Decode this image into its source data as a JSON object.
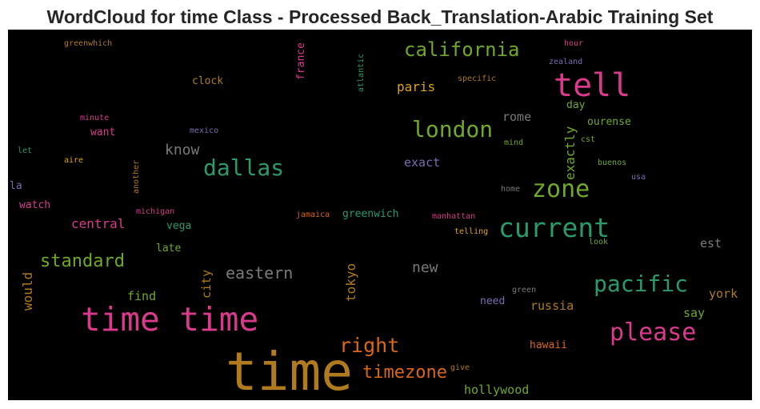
{
  "chart_data": {
    "type": "wordcloud",
    "title": "WordCloud for time Class - Processed Back_Translation-Arabic Training Set",
    "background": "#000000",
    "words": [
      {
        "text": "time",
        "weight": 1.0,
        "color": "#b07a1e",
        "orientation": "horizontal"
      },
      {
        "text": "time time",
        "weight": 0.62,
        "color": "#d93a8c",
        "orientation": "horizontal"
      },
      {
        "text": "tell",
        "weight": 0.6,
        "color": "#d93a8c",
        "orientation": "horizontal"
      },
      {
        "text": "current",
        "weight": 0.5,
        "color": "#2a9a6a",
        "orientation": "horizontal"
      },
      {
        "text": "zone",
        "weight": 0.46,
        "color": "#6fa82a",
        "orientation": "horizontal"
      },
      {
        "text": "please",
        "weight": 0.46,
        "color": "#d93a8c",
        "orientation": "horizontal"
      },
      {
        "text": "london",
        "weight": 0.42,
        "color": "#6fa82a",
        "orientation": "horizontal"
      },
      {
        "text": "pacific",
        "weight": 0.42,
        "color": "#2a9a6a",
        "orientation": "horizontal"
      },
      {
        "text": "dallas",
        "weight": 0.42,
        "color": "#2a9a6a",
        "orientation": "horizontal"
      },
      {
        "text": "right",
        "weight": 0.38,
        "color": "#d9661a",
        "orientation": "horizontal"
      },
      {
        "text": "california",
        "weight": 0.36,
        "color": "#6fa82a",
        "orientation": "horizontal"
      },
      {
        "text": "standard",
        "weight": 0.34,
        "color": "#6fa82a",
        "orientation": "horizontal"
      },
      {
        "text": "timezone",
        "weight": 0.34,
        "color": "#d9661a",
        "orientation": "horizontal"
      },
      {
        "text": "eastern",
        "weight": 0.3,
        "color": "#7a7a7a",
        "orientation": "horizontal"
      },
      {
        "text": "know",
        "weight": 0.28,
        "color": "#7a7a7a",
        "orientation": "horizontal"
      },
      {
        "text": "new",
        "weight": 0.28,
        "color": "#7a7a7a",
        "orientation": "horizontal"
      },
      {
        "text": "exactly",
        "weight": 0.24,
        "color": "#6fa82a",
        "orientation": "vertical"
      },
      {
        "text": "central",
        "weight": 0.24,
        "color": "#d93a8c",
        "orientation": "horizontal"
      },
      {
        "text": "paris",
        "weight": 0.24,
        "color": "#e0a21a",
        "orientation": "horizontal"
      },
      {
        "text": "tokyo",
        "weight": 0.24,
        "color": "#b07a1e",
        "orientation": "vertical"
      },
      {
        "text": "would",
        "weight": 0.24,
        "color": "#b07a1e",
        "orientation": "vertical"
      },
      {
        "text": "hollywood",
        "weight": 0.23,
        "color": "#6fa82a",
        "orientation": "horizontal"
      },
      {
        "text": "rome",
        "weight": 0.23,
        "color": "#7a7a7a",
        "orientation": "horizontal"
      },
      {
        "text": "exact",
        "weight": 0.23,
        "color": "#7b6bb0",
        "orientation": "horizontal"
      },
      {
        "text": "york",
        "weight": 0.23,
        "color": "#b07a1e",
        "orientation": "horizontal"
      },
      {
        "text": "russia",
        "weight": 0.23,
        "color": "#b07a1e",
        "orientation": "horizontal"
      },
      {
        "text": "say",
        "weight": 0.23,
        "color": "#6fa82a",
        "orientation": "horizontal"
      },
      {
        "text": "est",
        "weight": 0.22,
        "color": "#7a7a7a",
        "orientation": "horizontal"
      },
      {
        "text": "city",
        "weight": 0.22,
        "color": "#b07a1e",
        "orientation": "vertical"
      },
      {
        "text": "find",
        "weight": 0.22,
        "color": "#6fa82a",
        "orientation": "horizontal"
      },
      {
        "text": "hawaii",
        "weight": 0.2,
        "color": "#d9661a",
        "orientation": "horizontal"
      },
      {
        "text": "ourense",
        "weight": 0.2,
        "color": "#6fa82a",
        "orientation": "horizontal"
      },
      {
        "text": "day",
        "weight": 0.2,
        "color": "#6fa82a",
        "orientation": "horizontal"
      },
      {
        "text": "clock",
        "weight": 0.2,
        "color": "#b07a1e",
        "orientation": "horizontal"
      },
      {
        "text": "want",
        "weight": 0.2,
        "color": "#d93a8c",
        "orientation": "horizontal"
      },
      {
        "text": "watch",
        "weight": 0.2,
        "color": "#d93a8c",
        "orientation": "horizontal"
      },
      {
        "text": "greenwich",
        "weight": 0.19,
        "color": "#2a9a6a",
        "orientation": "horizontal"
      },
      {
        "text": "late",
        "weight": 0.19,
        "color": "#6fa82a",
        "orientation": "horizontal"
      },
      {
        "text": "vega",
        "weight": 0.19,
        "color": "#2a9a6a",
        "orientation": "horizontal"
      },
      {
        "text": "france",
        "weight": 0.19,
        "color": "#d93a8c",
        "orientation": "vertical"
      },
      {
        "text": "need",
        "weight": 0.19,
        "color": "#7b6bb0",
        "orientation": "horizontal"
      },
      {
        "text": "la",
        "weight": 0.19,
        "color": "#7b6bb0",
        "orientation": "horizontal"
      },
      {
        "text": "manhattan",
        "weight": 0.13,
        "color": "#d93a8c",
        "orientation": "horizontal"
      },
      {
        "text": "telling",
        "weight": 0.13,
        "color": "#e0a21a",
        "orientation": "horizontal"
      },
      {
        "text": "michigan",
        "weight": 0.13,
        "color": "#d93a8c",
        "orientation": "horizontal"
      },
      {
        "text": "jamaica",
        "weight": 0.13,
        "color": "#d9661a",
        "orientation": "horizontal"
      },
      {
        "text": "mexico",
        "weight": 0.13,
        "color": "#7b6bb0",
        "orientation": "horizontal"
      },
      {
        "text": "minute",
        "weight": 0.13,
        "color": "#d93a8c",
        "orientation": "horizontal"
      },
      {
        "text": "aire",
        "weight": 0.13,
        "color": "#e0a21a",
        "orientation": "horizontal"
      },
      {
        "text": "let",
        "weight": 0.13,
        "color": "#2a9a6a",
        "orientation": "horizontal"
      },
      {
        "text": "another",
        "weight": 0.12,
        "color": "#b07a1e",
        "orientation": "vertical"
      },
      {
        "text": "greenwhich",
        "weight": 0.13,
        "color": "#b07a1e",
        "orientation": "horizontal"
      },
      {
        "text": "atlantic",
        "weight": 0.12,
        "color": "#2a9a6a",
        "orientation": "vertical"
      },
      {
        "text": "specific",
        "weight": 0.13,
        "color": "#b07a1e",
        "orientation": "horizontal"
      },
      {
        "text": "hour",
        "weight": 0.13,
        "color": "#d93a8c",
        "orientation": "horizontal"
      },
      {
        "text": "zealand",
        "weight": 0.13,
        "color": "#7b6bb0",
        "orientation": "horizontal"
      },
      {
        "text": "mind",
        "weight": 0.12,
        "color": "#6fa82a",
        "orientation": "horizontal"
      },
      {
        "text": "cst",
        "weight": 0.12,
        "color": "#6fa82a",
        "orientation": "horizontal"
      },
      {
        "text": "buenos",
        "weight": 0.12,
        "color": "#6fa82a",
        "orientation": "horizontal"
      },
      {
        "text": "usa",
        "weight": 0.12,
        "color": "#7b6bb0",
        "orientation": "horizontal"
      },
      {
        "text": "home",
        "weight": 0.12,
        "color": "#7a7a7a",
        "orientation": "horizontal"
      },
      {
        "text": "look",
        "weight": 0.12,
        "color": "#6fa82a",
        "orientation": "horizontal"
      },
      {
        "text": "green",
        "weight": 0.12,
        "color": "#7a7a7a",
        "orientation": "horizontal"
      },
      {
        "text": "give",
        "weight": 0.12,
        "color": "#b07a1e",
        "orientation": "horizontal"
      }
    ]
  }
}
